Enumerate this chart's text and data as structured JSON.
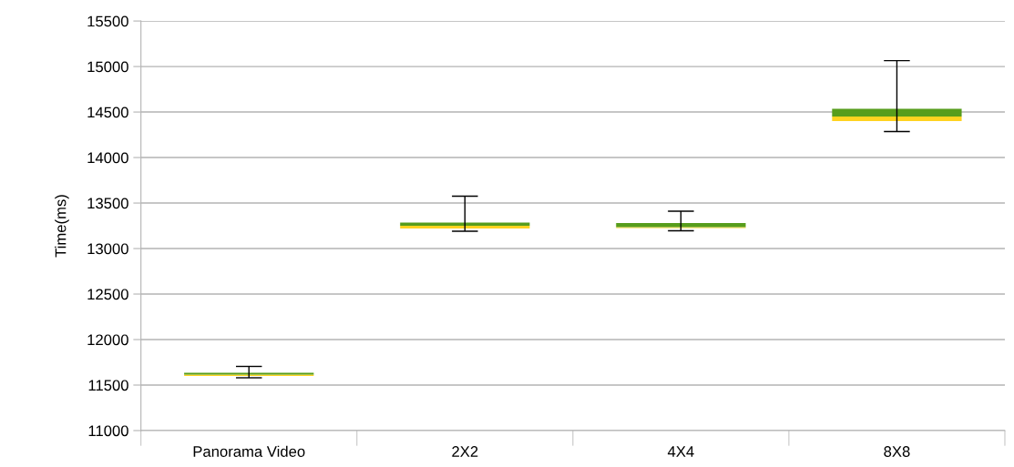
{
  "chart_data": {
    "type": "box",
    "ylabel": "Time(ms)",
    "categories": [
      "Panorama Video",
      "2X2",
      "4X4",
      "8X8"
    ],
    "boxes": [
      {
        "low": 11580,
        "q1": 11600,
        "median": 11615,
        "q3": 11635,
        "high": 11705
      },
      {
        "low": 13190,
        "q1": 13220,
        "median": 13250,
        "q3": 13285,
        "high": 13575
      },
      {
        "low": 13195,
        "q1": 13225,
        "median": 13235,
        "q3": 13280,
        "high": 13410
      },
      {
        "low": 14285,
        "q1": 14400,
        "median": 14450,
        "q3": 14535,
        "high": 15065
      }
    ],
    "colors": [
      [
        "#ffd320",
        "#579d1c"
      ],
      [
        "#ffd320",
        "#579d1c"
      ],
      [
        "#ffd320",
        "#579d1c"
      ],
      [
        "#ffd320",
        "#579d1c"
      ]
    ],
    "ylim": [
      11000,
      15500
    ],
    "yticks": [
      11000,
      11500,
      12000,
      12500,
      13000,
      13500,
      14000,
      14500,
      15000,
      15500
    ],
    "grid": "y",
    "legend": false
  }
}
